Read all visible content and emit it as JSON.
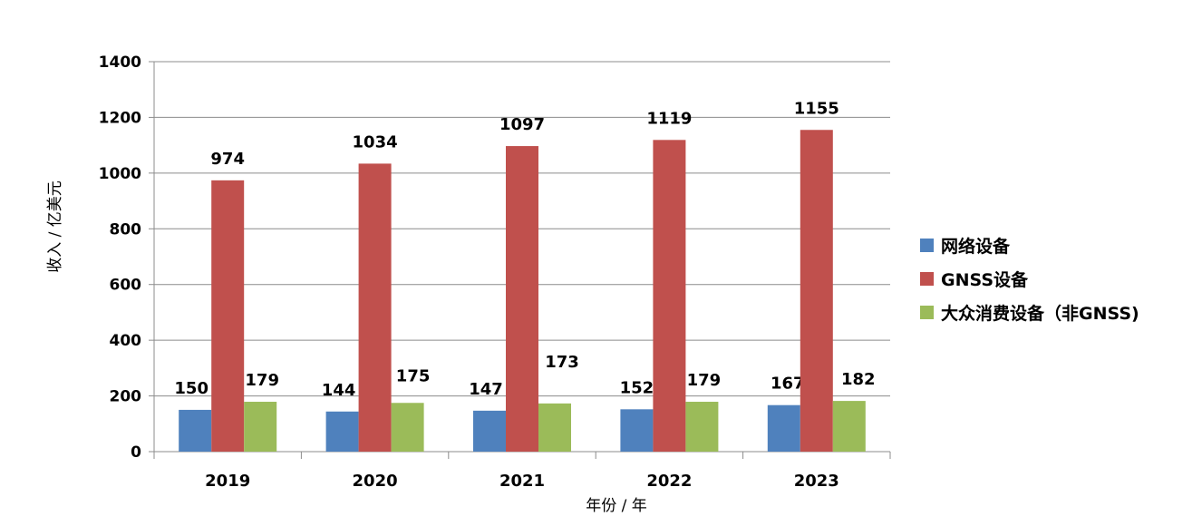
{
  "chart_data": {
    "type": "bar",
    "title": "",
    "xlabel": "年份 / 年",
    "ylabel": "收入 / 亿美元",
    "categories": [
      "2019",
      "2020",
      "2021",
      "2022",
      "2023"
    ],
    "series": [
      {
        "name": "网络设备",
        "values": [
          150,
          144,
          147,
          152,
          167
        ],
        "color": "#4f81bd"
      },
      {
        "name": "GNSS设备",
        "values": [
          974,
          1034,
          1097,
          1119,
          1155
        ],
        "color": "#c0504d"
      },
      {
        "name": "大众消费设备（非GNSS)",
        "values": [
          179,
          175,
          173,
          179,
          182
        ],
        "color": "#9bbb59"
      }
    ],
    "ylim": [
      0,
      1400
    ],
    "yticks": [
      0,
      200,
      400,
      600,
      800,
      1000,
      1200,
      1400
    ],
    "grid": true,
    "legend": "right"
  }
}
